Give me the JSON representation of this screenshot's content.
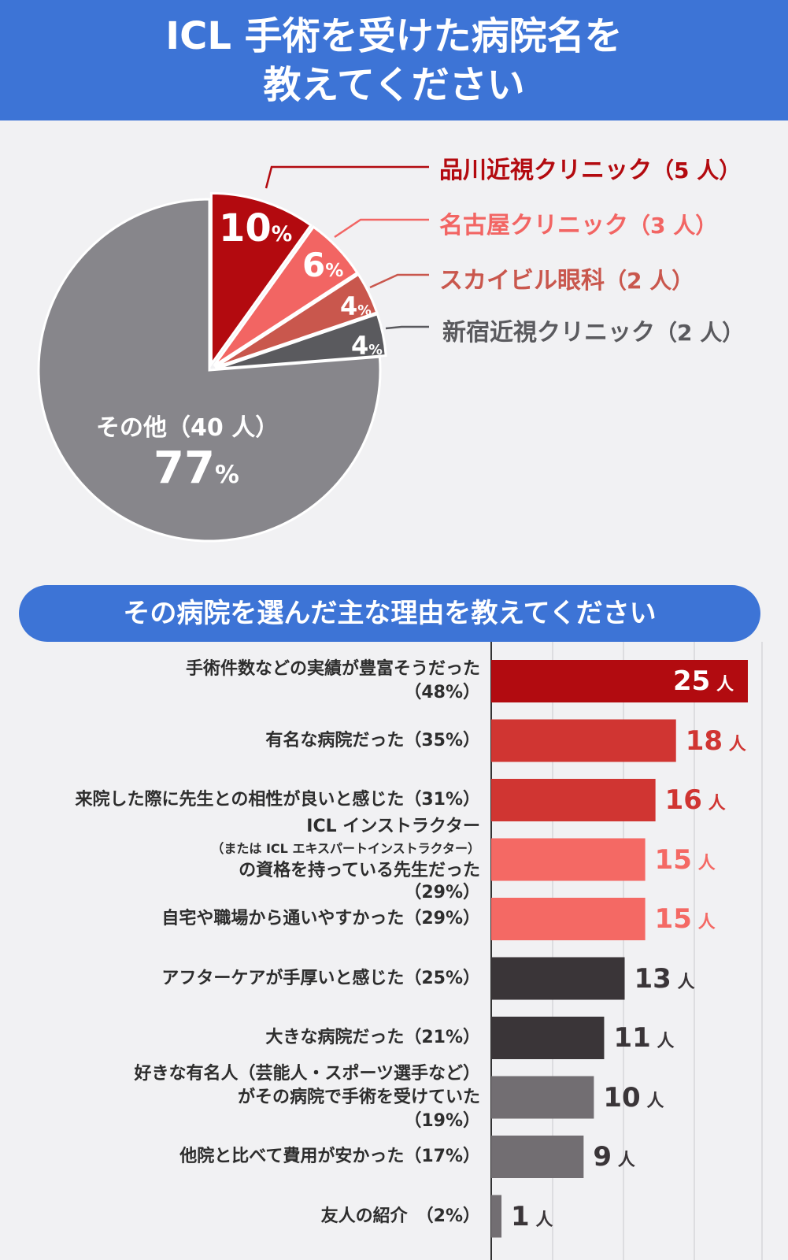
{
  "header": {
    "line1": "ICL 手術を受けた病院名を",
    "line2": "教えてください"
  },
  "section2": {
    "title": "その病院を選んだ主な理由を教えてください"
  },
  "chart_data": [
    {
      "type": "pie",
      "slices": [
        {
          "label": "品川近視クリニック",
          "count": "（5 人）",
          "value": 10,
          "pct_num": "10",
          "color": "#b30a0f"
        },
        {
          "label": "名古屋クリニック",
          "count": "（3 人）",
          "value": 6,
          "pct_num": "6",
          "color": "#f26563"
        },
        {
          "label": "スカイビル眼科",
          "count": "（2 人）",
          "value": 4,
          "pct_num": "4",
          "color": "#c9574d"
        },
        {
          "label": "新宿近視クリニック",
          "count": "（2 人）",
          "value": 4,
          "pct_num": "4",
          "color": "#5a5a5e"
        },
        {
          "label": "その他",
          "count": "（40 人）",
          "value": 77,
          "pct_num": "77",
          "color": "#87868b"
        }
      ],
      "pct_unit": "%",
      "legend_colors": [
        "#b30a0f",
        "#f26563",
        "#c9574d",
        "#5a5a5e"
      ]
    },
    {
      "type": "bar",
      "orientation": "horizontal",
      "xlim": [
        0,
        25
      ],
      "unit": "人",
      "bars": [
        {
          "label_lines": [
            "手術件数などの実績が豊富そうだった",
            "（48%）"
          ],
          "value": 25,
          "color": "#b20b10",
          "label_color": "#ffffff",
          "value_inside": true
        },
        {
          "label_lines": [
            "有名な病院だった（35%）"
          ],
          "value": 18,
          "color": "#d03532",
          "label_color": "#d03532",
          "value_inside": false
        },
        {
          "label_lines": [
            "来院した際に先生との相性が良いと感じた（31%）"
          ],
          "value": 16,
          "color": "#d03532",
          "label_color": "#d03532",
          "value_inside": false
        },
        {
          "label_lines": [
            "ICL インストラクター",
            "（または ICL エキスパートインストラクター）",
            "の資格を持っている先生だった",
            "（29%）"
          ],
          "value": 15,
          "color": "#f46964",
          "label_color": "#f46964",
          "value_inside": false
        },
        {
          "label_lines": [
            "自宅や職場から通いやすかった（29%）"
          ],
          "value": 15,
          "color": "#f46964",
          "label_color": "#f46964",
          "value_inside": false
        },
        {
          "label_lines": [
            "アフターケアが手厚いと感じた（25%）"
          ],
          "value": 13,
          "color": "#3a3538",
          "label_color": "#3a3538",
          "value_inside": false
        },
        {
          "label_lines": [
            "大きな病院だった（21%）"
          ],
          "value": 11,
          "color": "#3a3538",
          "label_color": "#3a3538",
          "value_inside": false
        },
        {
          "label_lines": [
            "好きな有名人（芸能人・スポーツ選手など）",
            "がその病院で手術を受けていた",
            "（19%）"
          ],
          "value": 10,
          "color": "#726e72",
          "label_color": "#3a3538",
          "value_inside": false
        },
        {
          "label_lines": [
            "他院と比べて費用が安かった（17%）"
          ],
          "value": 9,
          "color": "#726e72",
          "label_color": "#3a3538",
          "value_inside": false
        },
        {
          "label_lines": [
            "友人の紹介　（2%）"
          ],
          "value": 1,
          "color": "#726e72",
          "label_color": "#3a3538",
          "value_inside": false
        }
      ]
    }
  ]
}
